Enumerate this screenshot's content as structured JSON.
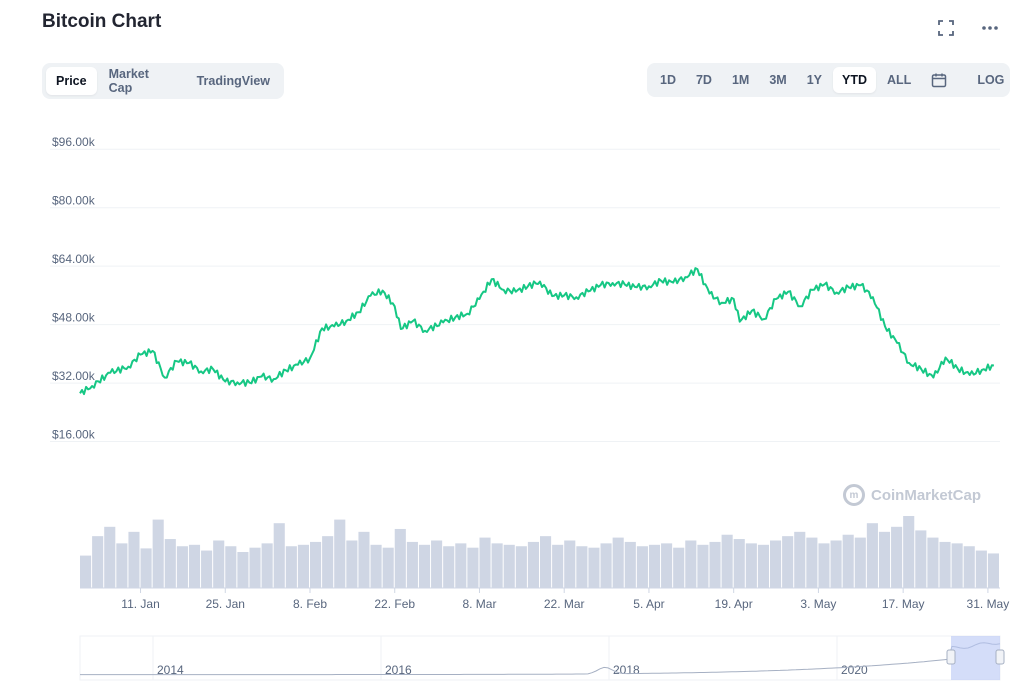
{
  "header": {
    "title": "Bitcoin Chart",
    "fullscreen_icon": "expand-icon",
    "more_icon": "more-icon"
  },
  "type_tabs": [
    {
      "label": "Price",
      "active": true
    },
    {
      "label": "Market Cap",
      "active": false
    },
    {
      "label": "TradingView",
      "active": false
    }
  ],
  "range_tabs": [
    {
      "label": "1D",
      "active": false
    },
    {
      "label": "7D",
      "active": false
    },
    {
      "label": "1M",
      "active": false
    },
    {
      "label": "3M",
      "active": false
    },
    {
      "label": "1Y",
      "active": false
    },
    {
      "label": "YTD",
      "active": true
    },
    {
      "label": "ALL",
      "active": false
    }
  ],
  "calendar_icon": "calendar-icon",
  "log_label": "LOG",
  "watermark": "CoinMarketCap",
  "colors": {
    "line": "#16c784",
    "volume": "#cfd6e4",
    "grid": "#eff2f5",
    "axis_text": "#58667e",
    "navigator_fill": "#b8c6f5"
  },
  "chart_data": {
    "type": "line",
    "title": "",
    "xlabel": "",
    "ylabel": "",
    "y_ticks": [
      "$16.00k",
      "$32.00k",
      "$48.00k",
      "$64.00k",
      "$80.00k",
      "$96.00k"
    ],
    "y_tick_values": [
      16000,
      32000,
      48000,
      64000,
      80000,
      96000
    ],
    "ylim": [
      0,
      104000
    ],
    "x_ticks": [
      "11. Jan",
      "25. Jan",
      "8. Feb",
      "22. Feb",
      "8. Mar",
      "22. Mar",
      "5. Apr",
      "19. Apr",
      "3. May",
      "17. May",
      "31. May"
    ],
    "x_tick_days": [
      10,
      24,
      38,
      52,
      66,
      80,
      94,
      108,
      122,
      136,
      150
    ],
    "x_range_days": [
      0,
      152
    ],
    "grid": true,
    "price_series": {
      "name": "",
      "day": [
        0,
        2,
        5,
        8,
        10,
        12,
        14,
        16,
        18,
        20,
        22,
        24,
        26,
        28,
        30,
        32,
        34,
        36,
        38,
        40,
        42,
        44,
        46,
        48,
        50,
        52,
        53,
        55,
        57,
        60,
        62,
        64,
        66,
        68,
        70,
        72,
        74,
        76,
        78,
        80,
        82,
        84,
        86,
        88,
        90,
        92,
        94,
        96,
        98,
        100,
        102,
        104,
        106,
        108,
        109,
        111,
        113,
        115,
        117,
        119,
        121,
        123,
        125,
        127,
        129,
        131,
        133,
        135,
        137,
        139,
        141,
        143,
        145,
        147,
        149,
        151
      ],
      "values": [
        29200,
        31200,
        34800,
        36500,
        39800,
        40800,
        33500,
        38000,
        37500,
        35200,
        35800,
        32400,
        32200,
        32100,
        33800,
        33100,
        35500,
        37000,
        38800,
        47000,
        47500,
        49000,
        51400,
        55900,
        57300,
        53000,
        46800,
        49000,
        46300,
        48600,
        50000,
        51000,
        55000,
        60400,
        57500,
        57000,
        58500,
        59800,
        55800,
        56000,
        55500,
        57100,
        58800,
        59400,
        59000,
        58200,
        58500,
        60000,
        59500,
        61000,
        63200,
        56500,
        54000,
        55000,
        48800,
        51800,
        49500,
        55000,
        57000,
        53000,
        57500,
        59000,
        56800,
        58200,
        58800,
        55500,
        47500,
        43000,
        37500,
        35800,
        33500,
        39000,
        36000,
        34200,
        35600,
        36800
      ]
    },
    "volume_relative": [
      0.45,
      0.72,
      0.85,
      0.62,
      0.78,
      0.55,
      0.95,
      0.68,
      0.58,
      0.6,
      0.52,
      0.66,
      0.58,
      0.5,
      0.56,
      0.62,
      0.9,
      0.58,
      0.6,
      0.64,
      0.72,
      0.95,
      0.66,
      0.78,
      0.6,
      0.56,
      0.82,
      0.64,
      0.6,
      0.66,
      0.58,
      0.62,
      0.56,
      0.7,
      0.62,
      0.6,
      0.58,
      0.64,
      0.72,
      0.6,
      0.66,
      0.58,
      0.56,
      0.62,
      0.7,
      0.64,
      0.58,
      0.6,
      0.62,
      0.56,
      0.66,
      0.6,
      0.64,
      0.74,
      0.68,
      0.62,
      0.6,
      0.66,
      0.72,
      0.78,
      0.7,
      0.62,
      0.66,
      0.74,
      0.7,
      0.9,
      0.78,
      0.85,
      1.0,
      0.8,
      0.7,
      0.64,
      0.62,
      0.58,
      0.52,
      0.48
    ],
    "navigator": {
      "x_ticks": [
        "2014",
        "2016",
        "2018",
        "2020"
      ]
    }
  }
}
